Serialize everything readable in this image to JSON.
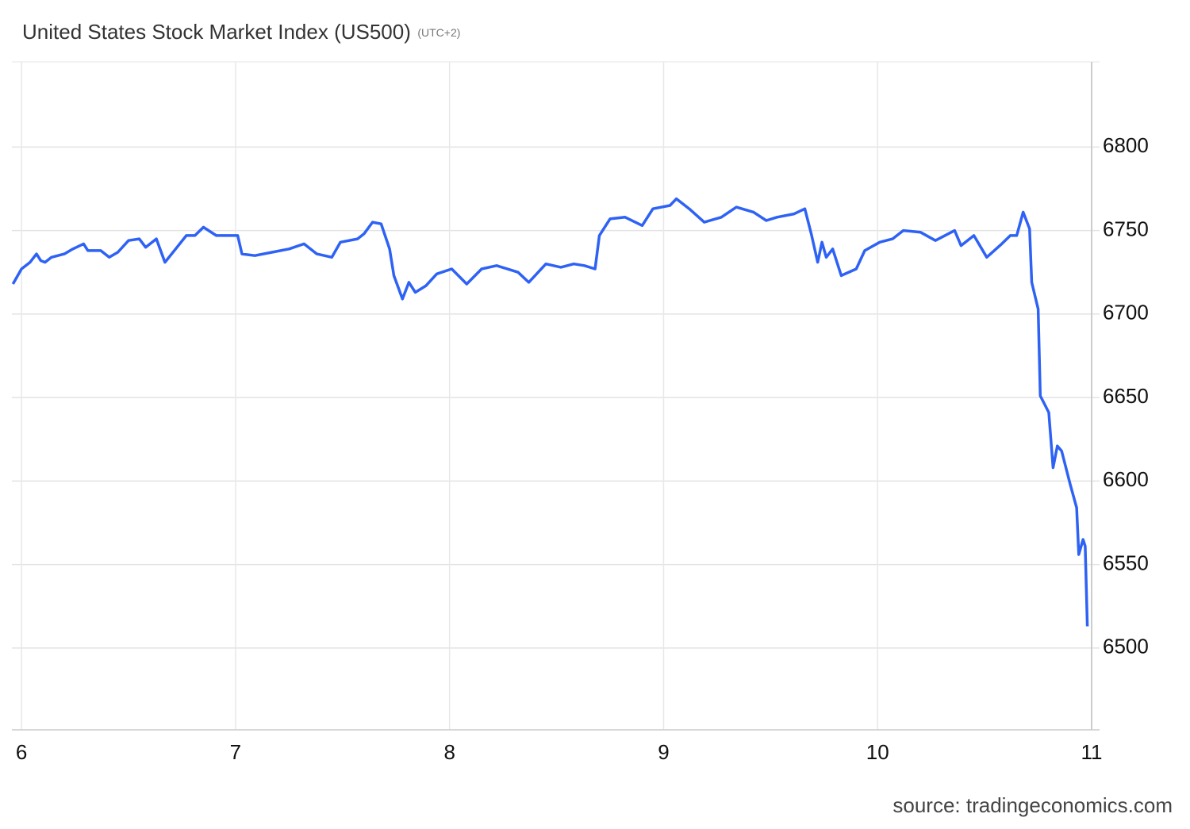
{
  "chart_data": {
    "type": "line",
    "title": "United States Stock Market Index (US500)",
    "subtitle": "(UTC+2)",
    "source": "source: tradingeconomics.com",
    "xlim": [
      5.955,
      11
    ],
    "xticks": [
      6,
      7,
      8,
      9,
      10,
      11
    ],
    "ylim": [
      6451,
      6851
    ],
    "yticks": [
      6500,
      6550,
      6600,
      6650,
      6700,
      6750,
      6800
    ],
    "grid": true,
    "x": [
      5.96,
      6.0,
      6.04,
      6.07,
      6.09,
      6.11,
      6.14,
      6.2,
      6.24,
      6.29,
      6.31,
      6.37,
      6.41,
      6.45,
      6.5,
      6.55,
      6.58,
      6.63,
      6.67,
      6.72,
      6.77,
      6.81,
      6.85,
      6.91,
      6.97,
      7.01,
      7.03,
      7.09,
      7.17,
      7.25,
      7.32,
      7.38,
      7.45,
      7.49,
      7.57,
      7.6,
      7.64,
      7.68,
      7.72,
      7.74,
      7.78,
      7.81,
      7.84,
      7.89,
      7.94,
      8.01,
      8.08,
      8.15,
      8.22,
      8.32,
      8.37,
      8.45,
      8.52,
      8.58,
      8.63,
      8.68,
      8.7,
      8.75,
      8.82,
      8.9,
      8.95,
      9.03,
      9.06,
      9.12,
      9.19,
      9.27,
      9.34,
      9.42,
      9.48,
      9.53,
      9.61,
      9.66,
      9.69,
      9.72,
      9.74,
      9.76,
      9.79,
      9.83,
      9.9,
      9.94,
      10.01,
      10.07,
      10.12,
      10.2,
      10.27,
      10.36,
      10.39,
      10.45,
      10.51,
      10.58,
      10.62,
      10.65,
      10.68,
      10.71,
      10.72,
      10.75,
      10.76,
      10.78,
      10.8,
      10.82,
      10.84,
      10.86,
      10.9,
      10.93,
      10.94,
      10.96,
      10.97,
      10.98
    ],
    "series": [
      {
        "name": "US500",
        "color": "#2e62f5",
        "values": [
          6718,
          6727,
          6731,
          6736,
          6732,
          6731,
          6734,
          6736,
          6739,
          6742,
          6738,
          6738,
          6734,
          6737,
          6744,
          6745,
          6740,
          6745,
          6731,
          6739,
          6747,
          6747,
          6752,
          6747,
          6747,
          6747,
          6736,
          6735,
          6737,
          6739,
          6742,
          6736,
          6734,
          6743,
          6745,
          6748,
          6755,
          6754,
          6739,
          6723,
          6709,
          6719,
          6713,
          6717,
          6724,
          6727,
          6718,
          6727,
          6729,
          6725,
          6719,
          6730,
          6728,
          6730,
          6729,
          6727,
          6747,
          6757,
          6758,
          6753,
          6763,
          6765,
          6769,
          6763,
          6755,
          6758,
          6764,
          6761,
          6756,
          6758,
          6760,
          6763,
          6748,
          6731,
          6743,
          6734,
          6739,
          6723,
          6727,
          6738,
          6743,
          6745,
          6750,
          6749,
          6744,
          6750,
          6741,
          6747,
          6734,
          6742,
          6747,
          6747,
          6761,
          6751,
          6719,
          6703,
          6651,
          6646,
          6641,
          6608,
          6621,
          6618,
          6598,
          6584,
          6556,
          6565,
          6561,
          6513
        ]
      }
    ]
  }
}
